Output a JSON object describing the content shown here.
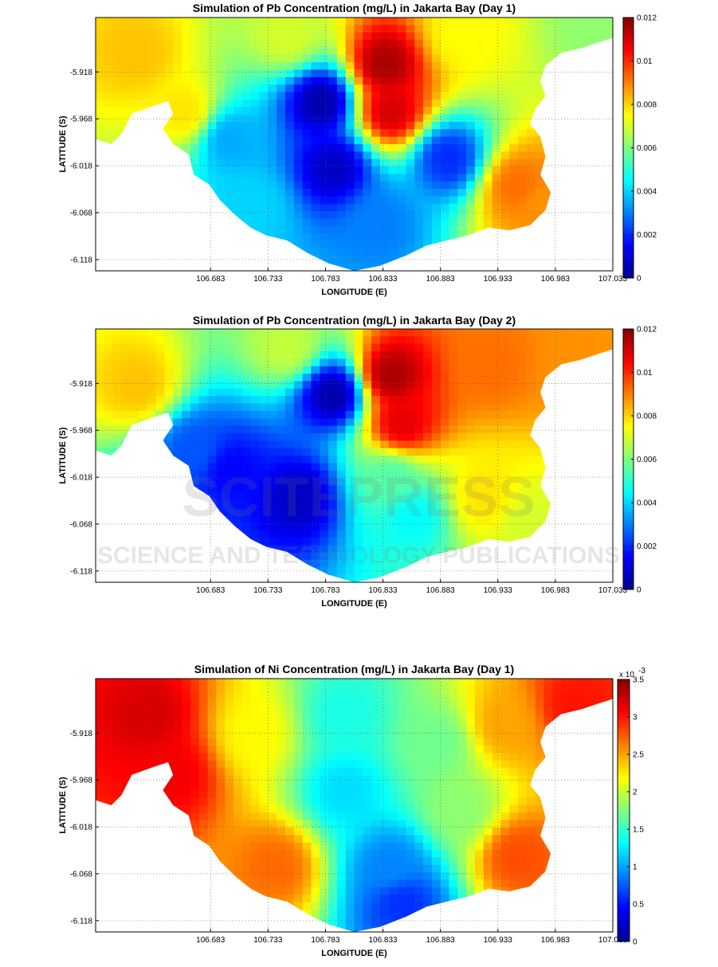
{
  "watermark": {
    "line1": "SCITEPRESS",
    "line2": "SCIENCE AND TECHNOLOGY PUBLICATIONS"
  },
  "colormap": "jet",
  "chart_data": [
    {
      "type": "heatmap",
      "title": "Simulation of Pb Concentration (mg/L) in Jakarta Bay (Day 1)",
      "xlabel": "LONGITUDE (E)",
      "ylabel": "LATITUDE (S)",
      "x_ticks": [
        "106.683",
        "106.733",
        "106.783",
        "106.833",
        "106.883",
        "106.933",
        "106.983",
        "107.033"
      ],
      "y_ticks": [
        "-5.918",
        "-5.968",
        "-6.018",
        "-6.068",
        "-6.118"
      ],
      "colorbar": {
        "min": 0,
        "max": 0.012,
        "ticks": [
          "0",
          "0.002",
          "0.004",
          "0.006",
          "0.008",
          "0.01",
          "0.012"
        ],
        "exponent_label": ""
      },
      "grid": true,
      "features": [
        {
          "x": 106.835,
          "y": -5.91,
          "value": 0.0115
        },
        {
          "x": 106.84,
          "y": -5.96,
          "value": 0.011
        },
        {
          "x": 106.62,
          "y": -5.9,
          "value": 0.0082
        },
        {
          "x": 106.66,
          "y": -5.96,
          "value": 0.0078
        },
        {
          "x": 106.95,
          "y": -6.04,
          "value": 0.0092
        },
        {
          "x": 106.97,
          "y": -6.06,
          "value": 0.0088
        },
        {
          "x": 106.9,
          "y": -5.88,
          "value": 0.0075
        },
        {
          "x": 106.75,
          "y": -5.88,
          "value": 0.007
        },
        {
          "x": 107.02,
          "y": -5.87,
          "value": 0.0062
        },
        {
          "x": 106.78,
          "y": -5.95,
          "value": 0.0005
        },
        {
          "x": 106.79,
          "y": -6.02,
          "value": 0.0008
        },
        {
          "x": 106.89,
          "y": -6.01,
          "value": 0.002
        },
        {
          "x": 106.83,
          "y": -6.08,
          "value": 0.003
        },
        {
          "x": 106.72,
          "y": -6.06,
          "value": 0.004
        },
        {
          "x": 106.7,
          "y": -5.99,
          "value": 0.0035
        }
      ]
    },
    {
      "type": "heatmap",
      "title": "Simulation of Pb Concentration (mg/L) in Jakarta Bay (Day 2)",
      "xlabel": "LONGITUDE (E)",
      "ylabel": "LATITUDE (S)",
      "x_ticks": [
        "106.683",
        "106.733",
        "106.783",
        "106.833",
        "106.883",
        "106.933",
        "106.983",
        "107.033"
      ],
      "y_ticks": [
        "-5.918",
        "-5.968",
        "-6.018",
        "-6.068",
        "-6.118"
      ],
      "colorbar": {
        "min": 0,
        "max": 0.012,
        "ticks": [
          "0",
          "0.002",
          "0.004",
          "0.006",
          "0.008",
          "0.01",
          "0.012"
        ],
        "exponent_label": ""
      },
      "grid": true,
      "features": [
        {
          "x": 106.84,
          "y": -5.91,
          "value": 0.0115
        },
        {
          "x": 106.85,
          "y": -5.96,
          "value": 0.0108
        },
        {
          "x": 106.62,
          "y": -5.92,
          "value": 0.0082
        },
        {
          "x": 106.93,
          "y": -5.9,
          "value": 0.0092
        },
        {
          "x": 107.0,
          "y": -5.9,
          "value": 0.0088
        },
        {
          "x": 106.92,
          "y": -6.04,
          "value": 0.0078
        },
        {
          "x": 106.96,
          "y": -6.07,
          "value": 0.007
        },
        {
          "x": 106.75,
          "y": -5.88,
          "value": 0.0068
        },
        {
          "x": 106.79,
          "y": -5.93,
          "value": 0.0005
        },
        {
          "x": 106.76,
          "y": -6.04,
          "value": 0.0008
        },
        {
          "x": 106.7,
          "y": -6.01,
          "value": 0.0015
        },
        {
          "x": 106.86,
          "y": -6.06,
          "value": 0.0045
        },
        {
          "x": 106.84,
          "y": -6.02,
          "value": 0.0055
        },
        {
          "x": 106.67,
          "y": -5.99,
          "value": 0.0025
        }
      ]
    },
    {
      "type": "heatmap",
      "title": "Simulation of Ni Concentration (mg/L) in Jakarta Bay (Day 1)",
      "xlabel": "LONGITUDE (E)",
      "ylabel": "LATITUDE (S)",
      "x_ticks": [
        "106.683",
        "106.733",
        "106.783",
        "106.833",
        "106.883",
        "106.933",
        "106.983",
        "107.033"
      ],
      "y_ticks": [
        "-5.918",
        "-5.968",
        "-6.018",
        "-6.068",
        "-6.118"
      ],
      "colorbar": {
        "min": 0,
        "max": 3.5,
        "ticks": [
          "0",
          "0.5",
          "1",
          "1.5",
          "2",
          "2.5",
          "3",
          "3.5"
        ],
        "exponent_label": "x 10",
        "exponent_power": "-3"
      },
      "grid": true,
      "features": [
        {
          "x": 106.63,
          "y": -5.9,
          "value": 3.2
        },
        {
          "x": 106.65,
          "y": -5.96,
          "value": 3.1
        },
        {
          "x": 107.0,
          "y": -5.89,
          "value": 3.0
        },
        {
          "x": 106.94,
          "y": -5.91,
          "value": 2.5
        },
        {
          "x": 106.95,
          "y": -6.05,
          "value": 2.8
        },
        {
          "x": 106.74,
          "y": -6.06,
          "value": 2.7
        },
        {
          "x": 106.72,
          "y": -5.92,
          "value": 2.2
        },
        {
          "x": 106.8,
          "y": -5.9,
          "value": 1.4
        },
        {
          "x": 106.8,
          "y": -5.98,
          "value": 1.2
        },
        {
          "x": 106.84,
          "y": -6.06,
          "value": 0.9
        },
        {
          "x": 106.85,
          "y": -6.1,
          "value": 0.6
        },
        {
          "x": 106.9,
          "y": -6.0,
          "value": 1.8
        },
        {
          "x": 106.88,
          "y": -5.93,
          "value": 1.7
        }
      ]
    }
  ]
}
